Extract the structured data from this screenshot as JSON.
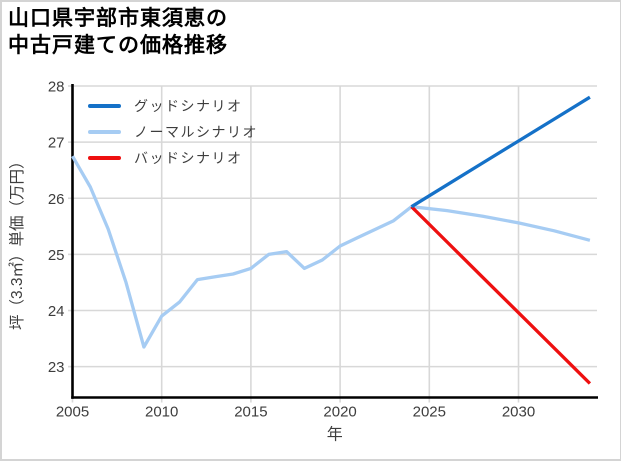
{
  "header": {
    "title_line1": "山口県宇部市東須恵の",
    "title_line2": "中古戸建ての価格推移"
  },
  "colors": {
    "good": "#1571c8",
    "normal": "#a6ccf3",
    "bad": "#ee1010",
    "grid": "#d8d8d8",
    "axis": "#000000",
    "tick_text": "#3d3d3d",
    "card_border": "#d4d4d4",
    "background": "#ffffff"
  },
  "chart_data": {
    "type": "line",
    "title": "山口県宇部市東須恵の中古戸建ての価格推移",
    "xlabel": "年",
    "ylabel": "坪（3.3㎡）単価（万円）",
    "x_ticks": [
      2005,
      2010,
      2015,
      2020,
      2025,
      2030
    ],
    "y_ticks": [
      23,
      24,
      25,
      26,
      27,
      28
    ],
    "xlim": [
      2005,
      2034.4
    ],
    "ylim": [
      22.45,
      28
    ],
    "grid": true,
    "legend_position": "upper-left-inside",
    "branch_year": 2024,
    "series": [
      {
        "key": "good",
        "name": "グッドシナリオ",
        "color": "#1571c8",
        "x": [
          2024,
          2026,
          2028,
          2030,
          2032,
          2034
        ],
        "y": [
          25.85,
          26.24,
          26.63,
          27.02,
          27.41,
          27.8
        ]
      },
      {
        "key": "normal",
        "name": "ノーマルシナリオ",
        "color": "#a6ccf3",
        "x": [
          2005,
          2006,
          2007,
          2008,
          2009,
          2010,
          2011,
          2012,
          2013,
          2014,
          2015,
          2016,
          2017,
          2018,
          2019,
          2020,
          2021,
          2022,
          2023,
          2024,
          2026,
          2028,
          2030,
          2032,
          2034
        ],
        "y": [
          26.75,
          26.2,
          25.45,
          24.5,
          23.35,
          23.9,
          24.15,
          24.55,
          24.6,
          24.65,
          24.75,
          25.0,
          25.05,
          24.75,
          24.9,
          25.15,
          25.3,
          25.45,
          25.6,
          25.85,
          25.78,
          25.68,
          25.56,
          25.42,
          25.25
        ]
      },
      {
        "key": "bad",
        "name": "バッドシナリオ",
        "color": "#ee1010",
        "x": [
          2024,
          2026,
          2028,
          2030,
          2032,
          2034
        ],
        "y": [
          25.85,
          25.22,
          24.59,
          23.96,
          23.33,
          22.7
        ]
      }
    ]
  }
}
